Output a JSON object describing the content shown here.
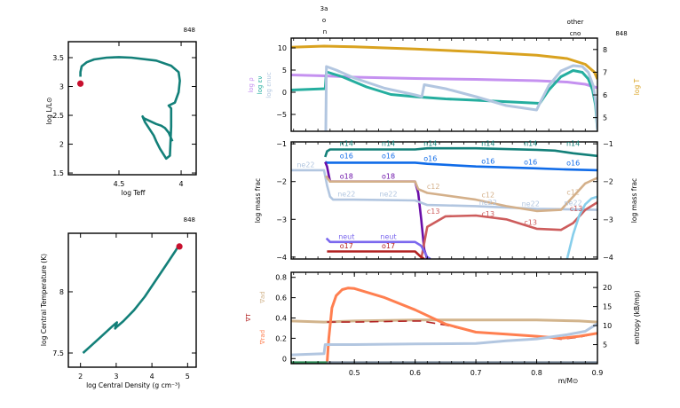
{
  "model_number": "848",
  "chart_data": [
    {
      "id": "hr",
      "type": "line",
      "title": "",
      "corner_label": "848",
      "xlabel": "log Teff",
      "ylabel": "log L/L⊙",
      "xlim": [
        4.907,
        3.879
      ],
      "ylim": [
        1.47,
        3.777
      ],
      "xticks": [
        4.5,
        4
      ],
      "xtick_labels": [
        "4.5",
        "4"
      ],
      "yticks": [
        1.5,
        2,
        2.5,
        3,
        3.5
      ],
      "ytick_labels": [
        "1.5",
        "2",
        "2.5",
        "3",
        "3.5"
      ],
      "series": [
        {
          "name": "track",
          "color": "#138079",
          "x": [
            4.07,
            4.08,
            4.1,
            4.13,
            4.16,
            4.2,
            4.3,
            4.31,
            4.29,
            4.22,
            4.2,
            4.17,
            4.12,
            4.09,
            4.08,
            4.08,
            4.1,
            4.05,
            4.02,
            4.01,
            4.02,
            4.08,
            4.2,
            4.4,
            4.5,
            4.6,
            4.7,
            4.76,
            4.8,
            4.81,
            4.81
          ],
          "y": [
            2.05,
            2.1,
            2.2,
            2.28,
            2.32,
            2.35,
            2.45,
            2.48,
            2.38,
            2.15,
            2.05,
            1.92,
            1.75,
            1.8,
            2.3,
            2.62,
            2.67,
            2.72,
            2.9,
            3.1,
            3.25,
            3.36,
            3.45,
            3.5,
            3.51,
            3.5,
            3.47,
            3.42,
            3.35,
            3.25,
            3.17
          ]
        }
      ],
      "marker": {
        "name": "current",
        "color": "#c8102e",
        "x": 4.81,
        "y": 3.05
      }
    },
    {
      "id": "central",
      "type": "line",
      "corner_label": "848",
      "xlabel": "log Central Density (g cm⁻³)",
      "ylabel": "log Central Temperature (K)",
      "xlim": [
        1.66,
        5.24
      ],
      "ylim": [
        7.384,
        8.478
      ],
      "xticks": [
        2,
        3,
        4,
        5
      ],
      "xtick_labels": [
        "2",
        "3",
        "4",
        "5"
      ],
      "yticks": [
        7.5,
        8
      ],
      "ytick_labels": [
        "7.5",
        "8"
      ],
      "series": [
        {
          "name": "center",
          "color": "#138079",
          "x": [
            2.07,
            2.3,
            2.6,
            2.9,
            3.02,
            2.97,
            3.0,
            3.2,
            3.5,
            3.8,
            4.1,
            4.4,
            4.65,
            4.78
          ],
          "y": [
            7.5,
            7.56,
            7.64,
            7.72,
            7.75,
            7.7,
            7.71,
            7.76,
            7.85,
            7.96,
            8.09,
            8.22,
            8.33,
            8.39
          ]
        }
      ],
      "marker": {
        "name": "current",
        "color": "#c8102e",
        "x": 4.77,
        "y": 8.37
      }
    },
    {
      "id": "profile-structure",
      "type": "line",
      "corner_label": "848",
      "top_labels": [
        "3a",
        "o",
        "n"
      ],
      "top_labels_right": [
        "other",
        "cno"
      ],
      "xlabel": "",
      "ylabel_left": [
        "log ρ",
        "log εν",
        "log εnuc"
      ],
      "ylabel_right": "log T",
      "xlim": [
        0.396,
        0.9
      ],
      "ylim": [
        -8.8,
        12.2
      ],
      "ylim_right": [
        4.4,
        8.5
      ],
      "yticks": [
        -5,
        0,
        5,
        10
      ],
      "ytick_labels": [
        "−5",
        "0",
        "5",
        "10"
      ],
      "yticks_right": [
        5,
        6,
        7,
        8
      ],
      "ytick_labels_right": [
        "5",
        "6",
        "7",
        "8"
      ],
      "series": [
        {
          "name": "log T",
          "axis": "right",
          "color": "#d9a21f",
          "x": [
            0.396,
            0.45,
            0.5,
            0.6,
            0.7,
            0.8,
            0.85,
            0.88,
            0.895,
            0.9
          ],
          "y": [
            8.1,
            8.15,
            8.12,
            8.02,
            7.9,
            7.75,
            7.6,
            7.35,
            7.0,
            6.7
          ]
        },
        {
          "name": "log rho",
          "axis": "left",
          "color": "#c591f0",
          "x": [
            0.396,
            0.45,
            0.5,
            0.6,
            0.7,
            0.8,
            0.85,
            0.88,
            0.9
          ],
          "y": [
            3.9,
            3.7,
            3.4,
            3.1,
            2.9,
            2.6,
            2.3,
            1.8,
            1.0
          ]
        },
        {
          "name": "log eps_nu",
          "axis": "left",
          "color": "#25ae9f",
          "x": [
            0.396,
            0.452,
            0.454,
            0.48,
            0.52,
            0.56,
            0.6,
            0.65,
            0.7,
            0.76,
            0.805,
            0.82,
            0.84,
            0.86,
            0.875,
            0.885,
            0.892,
            0.897,
            0.9
          ],
          "y": [
            0.5,
            0.8,
            4.6,
            3.5,
            1.2,
            -0.5,
            -1.0,
            -1.5,
            -1.8,
            -2.2,
            -2.5,
            0.5,
            3.5,
            4.9,
            4.5,
            3.0,
            0.5,
            -3.0,
            -8.5
          ]
        },
        {
          "name": "log eps_nuc",
          "axis": "left",
          "color": "#b2c6e0",
          "x": [
            0.453,
            0.454,
            0.47,
            0.5,
            0.55,
            0.6,
            0.611,
            0.615,
            0.65,
            0.7,
            0.75,
            0.8,
            0.805,
            0.82,
            0.84,
            0.86,
            0.875,
            0.885,
            0.893,
            0.898,
            0.9
          ],
          "y": [
            -8.8,
            5.8,
            5.0,
            3.2,
            0.9,
            -0.6,
            -1.0,
            1.7,
            0.8,
            -1.0,
            -3.0,
            -4.0,
            -2.5,
            1.5,
            4.8,
            6.0,
            5.8,
            4.5,
            1.5,
            -3.0,
            -8.5
          ]
        }
      ]
    },
    {
      "id": "profile-abundances",
      "type": "line",
      "xlabel": "",
      "ylabel": "log mass frac",
      "ylabel_right": "log mass frac",
      "xlim": [
        0.396,
        0.9
      ],
      "ylim": [
        -4.05,
        -0.95
      ],
      "yticks": [
        -4,
        -3,
        -2,
        -1
      ],
      "ytick_labels": [
        "−4",
        "−3",
        "−2",
        "−1"
      ],
      "series": [
        {
          "name": "n14",
          "color": "#138079",
          "x": [
            0.452,
            0.455,
            0.46,
            0.5,
            0.6,
            0.62,
            0.7,
            0.8,
            0.83,
            0.86,
            0.9
          ],
          "y": [
            -1.35,
            -1.2,
            -1.15,
            -1.15,
            -1.15,
            -1.12,
            -1.12,
            -1.16,
            -1.18,
            -1.25,
            -1.32
          ]
        },
        {
          "name": "o16",
          "color": "#0f6be8",
          "x": [
            0.452,
            0.455,
            0.5,
            0.6,
            0.62,
            0.7,
            0.8,
            0.85,
            0.9
          ],
          "y": [
            -1.48,
            -1.5,
            -1.5,
            -1.5,
            -1.53,
            -1.6,
            -1.65,
            -1.68,
            -1.7
          ]
        },
        {
          "name": "o18",
          "color": "#6a0ea8",
          "x": [
            0.452,
            0.455,
            0.46,
            0.5,
            0.6,
            0.605,
            0.61,
            0.615,
            0.62,
            0.625
          ],
          "y": [
            -1.48,
            -1.6,
            -2.0,
            -2.0,
            -2.0,
            -2.3,
            -3.0,
            -3.8,
            -4.05,
            -4.05
          ]
        },
        {
          "name": "ne22",
          "color": "#b2c6e0",
          "x": [
            0.396,
            0.45,
            0.455,
            0.46,
            0.465,
            0.5,
            0.6,
            0.62,
            0.7,
            0.8,
            0.9
          ],
          "y": [
            -1.7,
            -1.7,
            -2.1,
            -2.4,
            -2.48,
            -2.48,
            -2.5,
            -2.62,
            -2.65,
            -2.72,
            -2.75
          ]
        },
        {
          "name": "c12",
          "color": "#d4b08a",
          "x": [
            0.453,
            0.46,
            0.6,
            0.605,
            0.62,
            0.7,
            0.75,
            0.8,
            0.84,
            0.86,
            0.88,
            0.9
          ],
          "y": [
            -1.85,
            -2.0,
            -2.0,
            -2.2,
            -2.3,
            -2.48,
            -2.65,
            -2.78,
            -2.75,
            -2.4,
            -2.05,
            -1.9
          ]
        },
        {
          "name": "c13",
          "color": "#cd5c5c",
          "x": [
            0.61,
            0.62,
            0.65,
            0.7,
            0.75,
            0.8,
            0.84,
            0.86,
            0.88,
            0.9
          ],
          "y": [
            -4.05,
            -3.2,
            -2.92,
            -2.9,
            -3.0,
            -3.25,
            -3.28,
            -3.1,
            -2.75,
            -2.55
          ]
        },
        {
          "name": "neut",
          "color": "#7b68ee",
          "x": [
            0.454,
            0.46,
            0.5,
            0.6,
            0.61,
            0.62,
            0.625
          ],
          "y": [
            -3.5,
            -3.6,
            -3.6,
            -3.6,
            -3.7,
            -4.0,
            -4.05
          ]
        },
        {
          "name": "o17",
          "color": "#b22222",
          "x": [
            0.455,
            0.46,
            0.5,
            0.6,
            0.61,
            0.615
          ],
          "y": [
            -3.85,
            -3.85,
            -3.85,
            -3.85,
            -4.0,
            -4.05
          ]
        },
        {
          "name": "h1",
          "color": "#87ceeb",
          "x": [
            0.85,
            0.86,
            0.87,
            0.88,
            0.89,
            0.9
          ],
          "y": [
            -4.05,
            -3.4,
            -2.9,
            -2.6,
            -2.45,
            -2.4
          ]
        }
      ],
      "labels": [
        {
          "text": "n14",
          "color": "#138079",
          "x": 0.487,
          "y": -1.05
        },
        {
          "text": "n14",
          "color": "#138079",
          "x": 0.556,
          "y": -1.05
        },
        {
          "text": "n14",
          "color": "#138079",
          "x": 0.625,
          "y": -1.05
        },
        {
          "text": "n14",
          "color": "#138079",
          "x": 0.72,
          "y": -1.05
        },
        {
          "text": "n14",
          "color": "#138079",
          "x": 0.79,
          "y": -1.05
        },
        {
          "text": "n14",
          "color": "#138079",
          "x": 0.86,
          "y": -1.05
        },
        {
          "text": "o16",
          "color": "#0f6be8",
          "x": 0.487,
          "y": -1.38
        },
        {
          "text": "o16",
          "color": "#0f6be8",
          "x": 0.556,
          "y": -1.38
        },
        {
          "text": "o16",
          "color": "#0f6be8",
          "x": 0.625,
          "y": -1.46
        },
        {
          "text": "o16",
          "color": "#0f6be8",
          "x": 0.72,
          "y": -1.53
        },
        {
          "text": "o16",
          "color": "#0f6be8",
          "x": 0.79,
          "y": -1.55
        },
        {
          "text": "o16",
          "color": "#0f6be8",
          "x": 0.86,
          "y": -1.57
        },
        {
          "text": "ne22",
          "color": "#b2c6e0",
          "x": 0.42,
          "y": -1.62
        },
        {
          "text": "o18",
          "color": "#6a0ea8",
          "x": 0.487,
          "y": -1.92
        },
        {
          "text": "o18",
          "color": "#6a0ea8",
          "x": 0.556,
          "y": -1.92
        },
        {
          "text": "ne22",
          "color": "#b2c6e0",
          "x": 0.487,
          "y": -2.4
        },
        {
          "text": "ne22",
          "color": "#b2c6e0",
          "x": 0.556,
          "y": -2.4
        },
        {
          "text": "ne22",
          "color": "#b2c6e0",
          "x": 0.72,
          "y": -2.62
        },
        {
          "text": "ne22",
          "color": "#b2c6e0",
          "x": 0.79,
          "y": -2.65
        },
        {
          "text": "ne22",
          "color": "#b2c6e0",
          "x": 0.86,
          "y": -2.63
        },
        {
          "text": "c12",
          "color": "#d4b08a",
          "x": 0.63,
          "y": -2.2
        },
        {
          "text": "c12",
          "color": "#d4b08a",
          "x": 0.72,
          "y": -2.42
        },
        {
          "text": "c12",
          "color": "#d4b08a",
          "x": 0.86,
          "y": -2.35
        },
        {
          "text": "c13",
          "color": "#cd5c5c",
          "x": 0.63,
          "y": -2.85
        },
        {
          "text": "c13",
          "color": "#cd5c5c",
          "x": 0.72,
          "y": -2.92
        },
        {
          "text": "c13",
          "color": "#cd5c5c",
          "x": 0.79,
          "y": -3.15
        },
        {
          "text": "c13",
          "color": "#cd5c5c",
          "x": 0.865,
          "y": -2.78
        },
        {
          "text": "neut",
          "color": "#7b68ee",
          "x": 0.487,
          "y": -3.52
        },
        {
          "text": "neut",
          "color": "#7b68ee",
          "x": 0.556,
          "y": -3.52
        },
        {
          "text": "o17",
          "color": "#b22222",
          "x": 0.487,
          "y": -3.77
        },
        {
          "text": "o17",
          "color": "#b22222",
          "x": 0.556,
          "y": -3.77
        }
      ]
    },
    {
      "id": "profile-gradients",
      "type": "line",
      "xlabel": "m/M⊙",
      "ylabel_left": [
        "∇ad",
        "∇T",
        "∇rad"
      ],
      "ylabel_right": "entropy (kB/mp)",
      "xlim": [
        0.396,
        0.9
      ],
      "ylim": [
        -0.05,
        0.85
      ],
      "ylim_right": [
        0,
        24
      ],
      "xticks": [
        0.5,
        0.6,
        0.7,
        0.8,
        0.9
      ],
      "xtick_labels": [
        "0.5",
        "0.6",
        "0.7",
        "0.8",
        "0.9"
      ],
      "yticks": [
        0,
        0.2,
        0.4,
        0.6,
        0.8
      ],
      "ytick_labels": [
        "0",
        "0.2",
        "0.4",
        "0.6",
        "0.8"
      ],
      "yticks_right": [
        5,
        10,
        15,
        20
      ],
      "ytick_labels_right": [
        "5",
        "10",
        "15",
        "20"
      ],
      "series": [
        {
          "name": "grad_ad",
          "axis": "left",
          "color": "#d2b48c",
          "x": [
            0.396,
            0.45,
            0.5,
            0.6,
            0.7,
            0.8,
            0.87,
            0.9
          ],
          "y": [
            0.37,
            0.36,
            0.37,
            0.38,
            0.38,
            0.38,
            0.37,
            0.36
          ]
        },
        {
          "name": "grad_T",
          "axis": "left",
          "color": "#b22222",
          "dashed": true,
          "x": [
            0.455,
            0.5,
            0.6,
            0.61,
            0.65,
            0.7,
            0.75,
            0.8,
            0.84,
            0.87,
            0.9
          ],
          "y": [
            0.36,
            0.36,
            0.37,
            0.37,
            0.33,
            0.26,
            0.24,
            0.22,
            0.19,
            0.21,
            0.25
          ]
        },
        {
          "name": "grad_rad",
          "axis": "left",
          "color": "#ff7f50",
          "x": [
            0.455,
            0.458,
            0.463,
            0.47,
            0.48,
            0.49,
            0.5,
            0.55,
            0.6,
            0.65,
            0.7,
            0.75,
            0.8,
            0.84,
            0.87,
            0.9
          ],
          "y": [
            -0.05,
            0.2,
            0.5,
            0.62,
            0.68,
            0.695,
            0.69,
            0.6,
            0.48,
            0.34,
            0.26,
            0.24,
            0.22,
            0.2,
            0.22,
            0.25
          ]
        },
        {
          "name": "entropy",
          "axis": "right",
          "color": "#b2c6e0",
          "x": [
            0.396,
            0.45,
            0.452,
            0.5,
            0.6,
            0.7,
            0.75,
            0.8,
            0.85,
            0.88,
            0.9
          ],
          "y": [
            2.3,
            2.6,
            5.0,
            5.0,
            5.2,
            5.3,
            6.0,
            6.5,
            7.6,
            8.5,
            10.5
          ]
        },
        {
          "name": "baseline",
          "axis": "left",
          "color": "#708090",
          "x": [
            0.455,
            0.9
          ],
          "y": [
            -0.04,
            -0.04
          ]
        },
        {
          "name": "convective",
          "axis": "left",
          "color": "#2e8b57",
          "x": [
            0.396,
            0.455
          ],
          "y": [
            -0.04,
            -0.04
          ]
        }
      ]
    }
  ]
}
